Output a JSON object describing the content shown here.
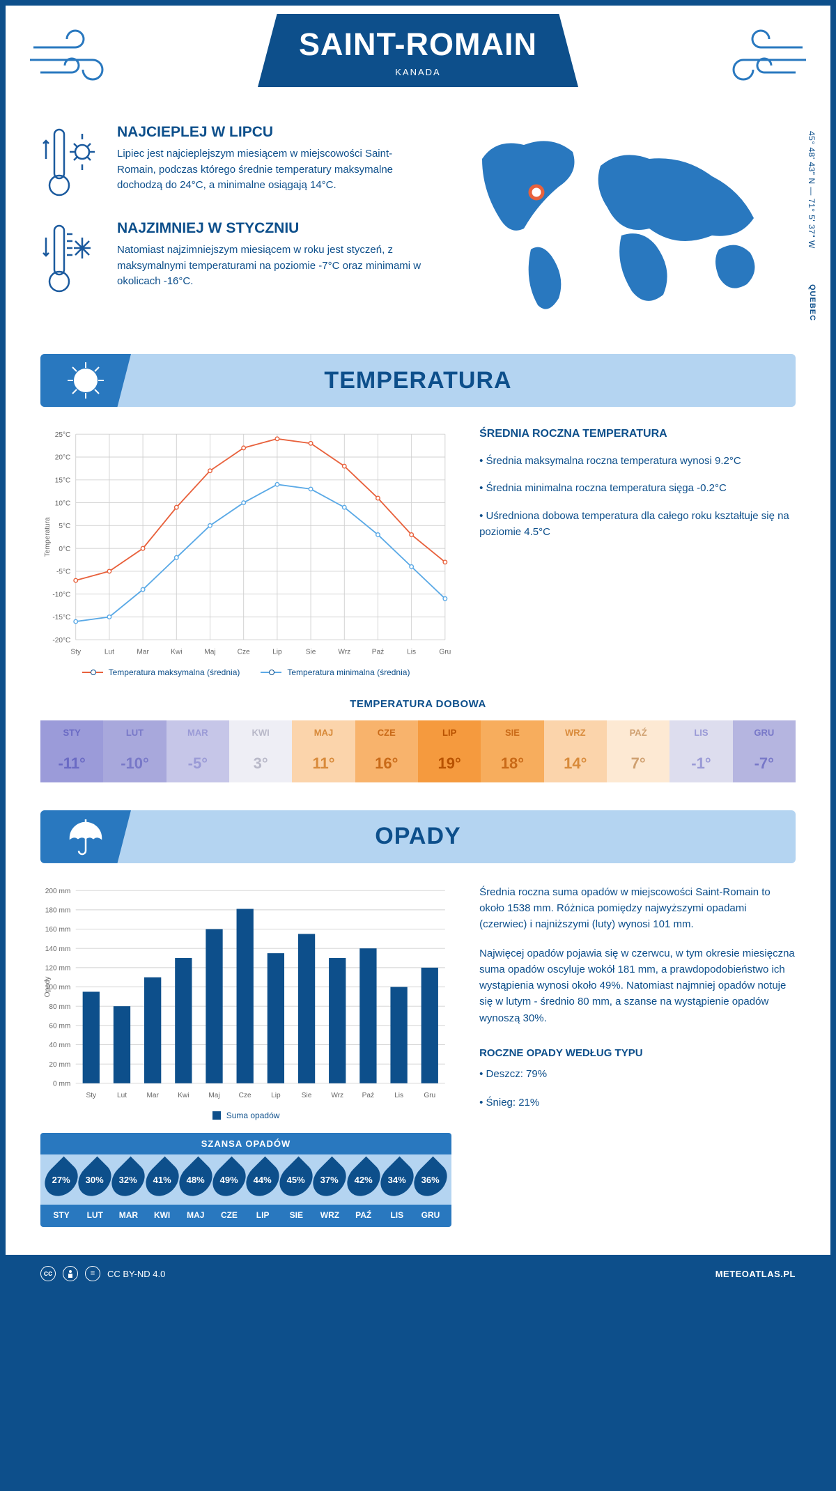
{
  "header": {
    "title": "SAINT-ROMAIN",
    "country": "KANADA"
  },
  "intro": {
    "warm": {
      "title": "NAJCIEPLEJ W LIPCU",
      "text": "Lipiec jest najcieplejszym miesiącem w miejscowości Saint-Romain, podczas którego średnie temperatury maksymalne dochodzą do 24°C, a minimalne osiągają 14°C."
    },
    "cold": {
      "title": "NAJZIMNIEJ W STYCZNIU",
      "text": "Natomiast najzimniejszym miesiącem w roku jest styczeń, z maksymalnymi temperaturami na poziomie -7°C oraz minimami w okolicach -16°C."
    },
    "coordinates": "45° 48' 43\" N — 71° 5' 37\" W",
    "region": "QUEBEC"
  },
  "sections": {
    "temperature_title": "TEMPERATURA",
    "precipitation_title": "OPADY"
  },
  "temp_chart": {
    "type": "line",
    "months": [
      "Sty",
      "Lut",
      "Mar",
      "Kwi",
      "Maj",
      "Cze",
      "Lip",
      "Sie",
      "Wrz",
      "Paź",
      "Lis",
      "Gru"
    ],
    "series_max": {
      "label": "Temperatura maksymalna (średnia)",
      "color": "#e8613c",
      "values": [
        -7,
        -5,
        0,
        9,
        17,
        22,
        24,
        23,
        18,
        11,
        3,
        -3
      ]
    },
    "series_min": {
      "label": "Temperatura minimalna (średnia)",
      "color": "#5aa9e6",
      "values": [
        -16,
        -15,
        -9,
        -2,
        5,
        10,
        14,
        13,
        9,
        3,
        -4,
        -11
      ]
    },
    "ylim": [
      -20,
      25
    ],
    "ytick_step": 5,
    "ylabel": "Temperatura",
    "grid_color": "#d0d0d0",
    "axis_color": "#888",
    "line_width": 2,
    "marker_size": 3
  },
  "temp_info": {
    "heading": "ŚREDNIA ROCZNA TEMPERATURA",
    "bullets": [
      "• Średnia maksymalna roczna temperatura wynosi 9.2°C",
      "• Średnia minimalna roczna temperatura sięga -0.2°C",
      "• Uśredniona dobowa temperatura dla całego roku kształtuje się na poziomie 4.5°C"
    ]
  },
  "daily_temp": {
    "heading": "TEMPERATURA DOBOWA",
    "months": [
      "STY",
      "LUT",
      "MAR",
      "KWI",
      "MAJ",
      "CZE",
      "LIP",
      "SIE",
      "WRZ",
      "PAŹ",
      "LIS",
      "GRU"
    ],
    "values": [
      "-11°",
      "-10°",
      "-5°",
      "3°",
      "11°",
      "16°",
      "19°",
      "18°",
      "14°",
      "7°",
      "-1°",
      "-7°"
    ],
    "colors": [
      "#9b9bd9",
      "#a8a8dc",
      "#c6c6e8",
      "#eeeef5",
      "#fbd4ab",
      "#f8b36c",
      "#f59a3e",
      "#f7ad5d",
      "#fbd4ab",
      "#fde9d3",
      "#ddddee",
      "#b5b5e0"
    ],
    "text_colors": [
      "#6a6ac4",
      "#7878c8",
      "#9a9ad6",
      "#b8b8c8",
      "#d88a3a",
      "#c96a18",
      "#b85200",
      "#c96a18",
      "#d88a3a",
      "#cfa070",
      "#9a9ad6",
      "#7878c8"
    ]
  },
  "precip_chart": {
    "type": "bar",
    "months": [
      "Sty",
      "Lut",
      "Mar",
      "Kwi",
      "Maj",
      "Cze",
      "Lip",
      "Sie",
      "Wrz",
      "Paź",
      "Lis",
      "Gru"
    ],
    "values": [
      95,
      80,
      110,
      130,
      160,
      181,
      135,
      155,
      130,
      140,
      100,
      120
    ],
    "bar_color": "#0d4f8b",
    "ylim": [
      0,
      200
    ],
    "ytick_step": 20,
    "ylabel": "Opady",
    "legend": "Suma opadów",
    "grid_color": "#d0d0d0",
    "bar_width": 0.55
  },
  "precip_info": {
    "para1": "Średnia roczna suma opadów w miejscowości Saint-Romain to około 1538 mm. Różnica pomiędzy najwyższymi opadami (czerwiec) i najniższymi (luty) wynosi 101 mm.",
    "para2": "Najwięcej opadów pojawia się w czerwcu, w tym okresie miesięczna suma opadów oscyluje wokół 181 mm, a prawdopodobieństwo ich wystąpienia wynosi około 49%. Natomiast najmniej opadów notuje się w lutym - średnio 80 mm, a szanse na wystąpienie opadów wynoszą 30%.",
    "type_heading": "ROCZNE OPADY WEDŁUG TYPU",
    "type_rain": "• Deszcz: 79%",
    "type_snow": "• Śnieg: 21%"
  },
  "chance": {
    "heading": "SZANSA OPADÓW",
    "months": [
      "STY",
      "LUT",
      "MAR",
      "KWI",
      "MAJ",
      "CZE",
      "LIP",
      "SIE",
      "WRZ",
      "PAŹ",
      "LIS",
      "GRU"
    ],
    "values": [
      "27%",
      "30%",
      "32%",
      "41%",
      "48%",
      "49%",
      "44%",
      "45%",
      "37%",
      "42%",
      "34%",
      "36%"
    ]
  },
  "footer": {
    "license": "CC BY-ND 4.0",
    "site": "METEOATLAS.PL"
  }
}
